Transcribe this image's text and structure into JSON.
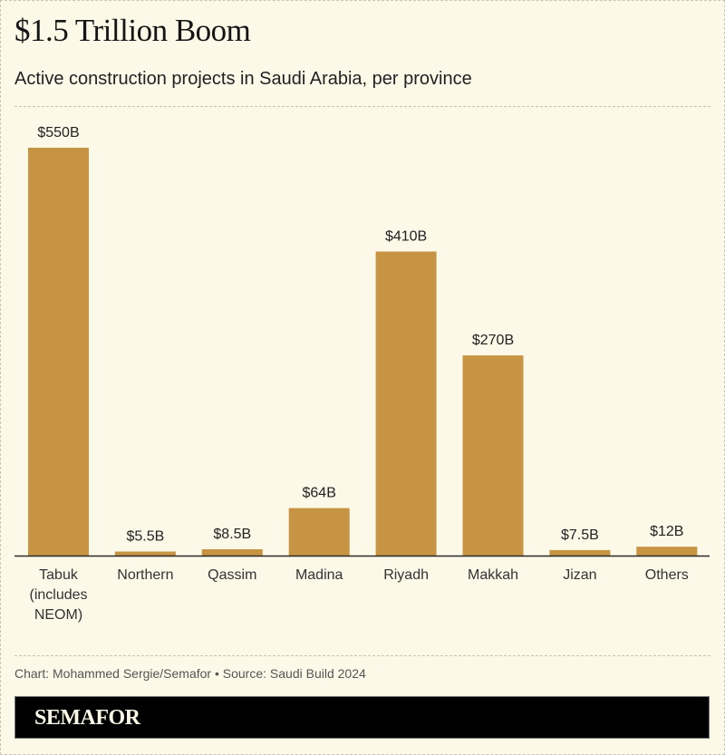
{
  "header": {
    "title": "$1.5 Trillion Boom",
    "subtitle": "Active construction projects in Saudi Arabia, per province"
  },
  "chart_data": {
    "type": "bar",
    "title": "$1.5 Trillion Boom",
    "subtitle": "Active construction projects in Saudi Arabia, per province",
    "xlabel": "",
    "ylabel": "",
    "unit": "billion USD",
    "ylim": [
      0,
      550
    ],
    "grid": false,
    "categories": [
      [
        "Tabuk",
        "(includes",
        "NEOM)"
      ],
      [
        "Northern"
      ],
      [
        "Qassim"
      ],
      [
        "Madina"
      ],
      [
        "Riyadh"
      ],
      [
        "Makkah"
      ],
      [
        "Jizan"
      ],
      [
        "Others"
      ]
    ],
    "values": [
      550,
      5.5,
      8.5,
      64,
      410,
      270,
      7.5,
      12
    ],
    "data_labels": [
      "$550B",
      "$5.5B",
      "$8.5B",
      "$64B",
      "$410B",
      "$270B",
      "$7.5B",
      "$12B"
    ],
    "bar_color": "#c79443"
  },
  "footer": {
    "credit": "Chart: Mohammed Sergie/Semafor • Source: Saudi Build 2024",
    "logo": "SEMAFOR"
  },
  "colors": {
    "background": "#fcf9e8",
    "bar": "#c79443",
    "footer_bg": "#000000"
  }
}
